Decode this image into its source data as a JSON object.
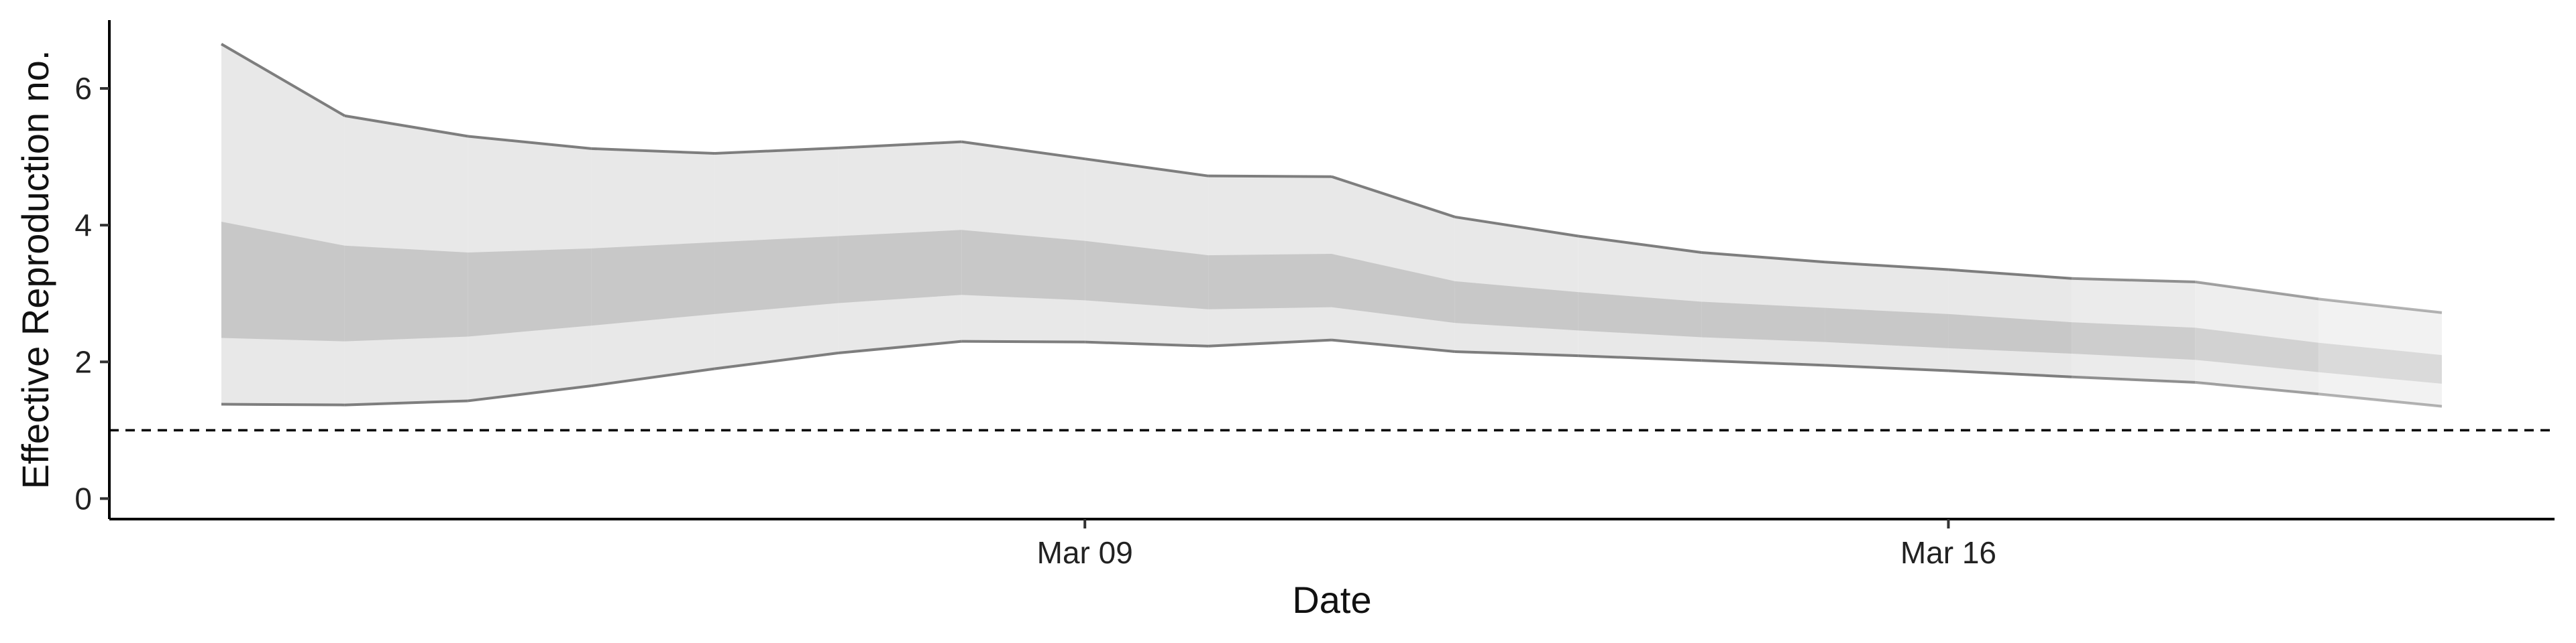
{
  "chart_data": {
    "type": "area",
    "title": "",
    "xlabel": "Date",
    "ylabel": "Effective Reproduction no.",
    "x_start": "2020-03-02",
    "x_end": "2020-03-20",
    "x_ticks": [
      {
        "date": "2020-03-09",
        "label": "Mar 09"
      },
      {
        "date": "2020-03-16",
        "label": "Mar 16"
      }
    ],
    "ylim": [
      -0.3,
      7.0
    ],
    "y_ticks": [
      0,
      2,
      4,
      6
    ],
    "reference_line": {
      "y": 1,
      "style": "dashed"
    },
    "grid": false,
    "legend": "none",
    "bands": {
      "dates": [
        "2020-03-02",
        "2020-03-03",
        "2020-03-04",
        "2020-03-05",
        "2020-03-06",
        "2020-03-07",
        "2020-03-08",
        "2020-03-09",
        "2020-03-10",
        "2020-03-11",
        "2020-03-12",
        "2020-03-13",
        "2020-03-14",
        "2020-03-15",
        "2020-03-16",
        "2020-03-17",
        "2020-03-18",
        "2020-03-19",
        "2020-03-20"
      ],
      "outer_upper": [
        6.65,
        5.6,
        5.3,
        5.12,
        5.05,
        5.13,
        5.22,
        4.97,
        4.72,
        4.71,
        4.12,
        3.84,
        3.6,
        3.46,
        3.35,
        3.22,
        3.17,
        2.92,
        2.72
      ],
      "outer_lower": [
        1.38,
        1.37,
        1.43,
        1.65,
        1.9,
        2.13,
        2.3,
        2.29,
        2.23,
        2.32,
        2.15,
        2.09,
        2.02,
        1.95,
        1.87,
        1.78,
        1.7,
        1.53,
        1.35
      ],
      "inner_upper": [
        4.05,
        3.7,
        3.6,
        3.66,
        3.75,
        3.84,
        3.93,
        3.77,
        3.56,
        3.58,
        3.18,
        3.02,
        2.88,
        2.79,
        2.7,
        2.58,
        2.5,
        2.28,
        2.1
      ],
      "inner_lower": [
        2.35,
        2.3,
        2.37,
        2.53,
        2.7,
        2.86,
        2.98,
        2.9,
        2.77,
        2.8,
        2.57,
        2.46,
        2.36,
        2.29,
        2.2,
        2.12,
        2.03,
        1.85,
        1.68
      ]
    },
    "colors": {
      "outer": "#e8e8e8",
      "inner": "#c8c8c8",
      "line": "#777777",
      "axis": "#000000"
    }
  }
}
